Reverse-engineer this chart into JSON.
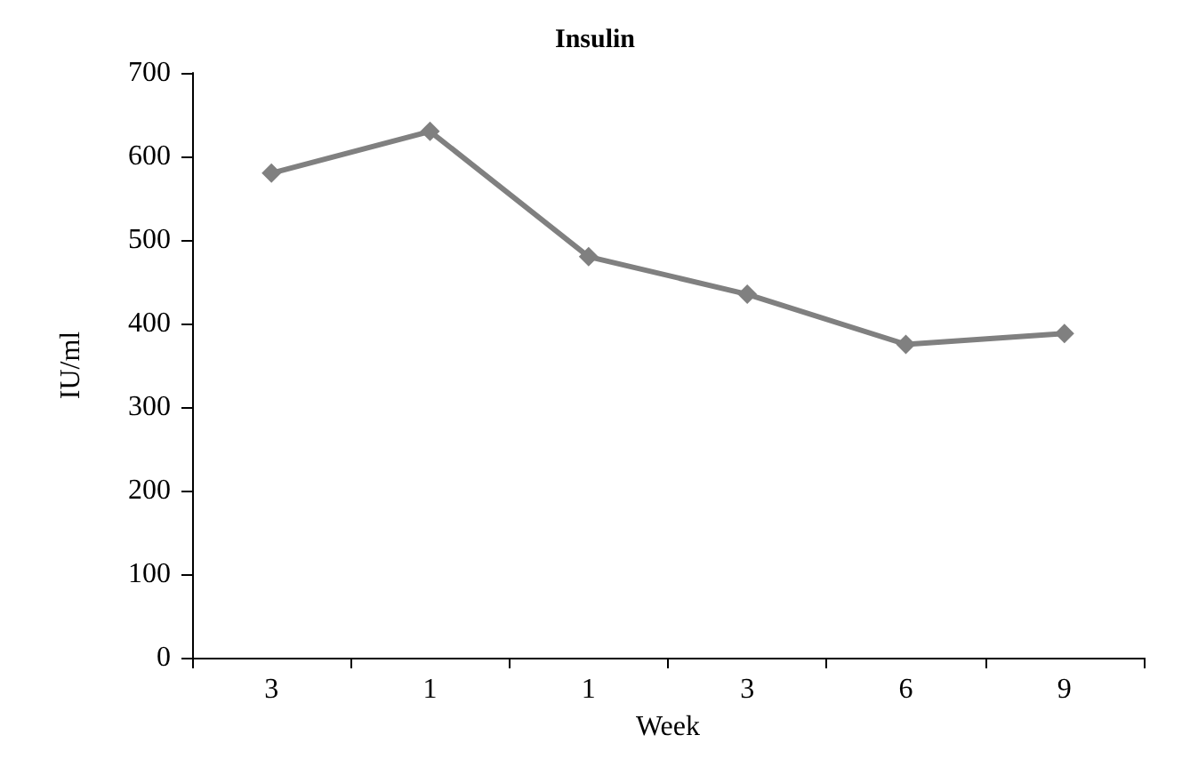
{
  "chart_data": {
    "type": "line",
    "title": "Insulin",
    "xlabel": "Week",
    "ylabel": "IU/ml",
    "categories": [
      "3",
      "1",
      "1",
      "3",
      "6",
      "9"
    ],
    "series": [
      {
        "color": "#808080",
        "values": [
          580,
          630,
          480,
          435,
          375,
          388
        ]
      }
    ],
    "ylim": [
      0,
      700
    ],
    "yticks": [
      0,
      100,
      200,
      300,
      400,
      500,
      600,
      700
    ],
    "grid": false,
    "marker": "diamond",
    "line_style": "solid"
  }
}
